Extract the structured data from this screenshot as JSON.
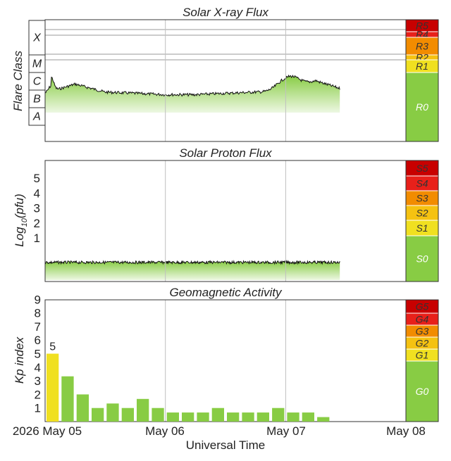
{
  "colors": {
    "green": "#88cc44",
    "yellow": "#f0e020",
    "amber": "#f5c211",
    "orange": "#f28c00",
    "red": "#e8201a",
    "darkred": "#c80000",
    "grid": "#c0c0c0",
    "frame": "#333333"
  },
  "xray": {
    "title": "Solar X-ray Flux",
    "ylabel": "Flare Class",
    "classes": [
      "X",
      "M",
      "C",
      "B",
      "A"
    ],
    "scale": [
      {
        "label": "R5",
        "color": "#c80000"
      },
      {
        "label": "R4",
        "color": "#e8201a"
      },
      {
        "label": "R3",
        "color": "#f28c00"
      },
      {
        "label": "R2",
        "color": "#f5c211"
      },
      {
        "label": "R1",
        "color": "#f0e020"
      },
      {
        "label": "R0",
        "color": "#88cc44"
      }
    ]
  },
  "proton": {
    "title": "Solar Proton Flux",
    "ylabel_main": "Log",
    "ylabel_sub": "10",
    "ylabel_unit": "(pfu)",
    "ticks": [
      "5",
      "4",
      "3",
      "2",
      "1"
    ],
    "scale": [
      {
        "label": "S5",
        "color": "#c80000"
      },
      {
        "label": "S4",
        "color": "#e8201a"
      },
      {
        "label": "S3",
        "color": "#f28c00"
      },
      {
        "label": "S2",
        "color": "#f5c211"
      },
      {
        "label": "S1",
        "color": "#f0e020"
      },
      {
        "label": "S0",
        "color": "#88cc44"
      }
    ]
  },
  "geomag": {
    "title": "Geomagnetic Activity",
    "ylabel": "Kp index",
    "ticks": [
      "9",
      "8",
      "7",
      "6",
      "5",
      "4",
      "3",
      "2",
      "1"
    ],
    "scale": [
      {
        "label": "G5",
        "color": "#c80000"
      },
      {
        "label": "G4",
        "color": "#e8201a"
      },
      {
        "label": "G3",
        "color": "#f28c00"
      },
      {
        "label": "G2",
        "color": "#f5c211"
      },
      {
        "label": "G1",
        "color": "#f0e020"
      },
      {
        "label": "G0",
        "color": "#88cc44"
      }
    ],
    "first_bar_label": "5"
  },
  "xaxis": {
    "label": "Universal Time",
    "ticks": [
      "2026 May 05",
      "May 06",
      "May 07",
      "May 08"
    ]
  },
  "chart_data": [
    {
      "type": "area",
      "title": "Solar X-ray Flux",
      "ylabel": "Flare Class",
      "y_scale": "log",
      "series": [
        {
          "x": [
            "2026-05-05 00:00",
            "2026-05-05 06:00",
            "2026-05-05 12:00",
            "2026-05-05 18:00",
            "2026-05-06 00:00",
            "2026-05-06 06:00",
            "2026-05-06 12:00",
            "2026-05-06 18:00",
            "2026-05-07 00:00",
            "2026-05-07 06:00",
            "2026-05-07 12:00"
          ],
          "class_level": [
            "B6",
            "C2",
            "B7",
            "B6",
            "B5",
            "B5",
            "B6",
            "B7",
            "B6",
            "C3",
            "B9"
          ]
        }
      ]
    },
    {
      "type": "area",
      "title": "Solar Proton Flux",
      "ylabel": "Log10(pfu)",
      "ylim": [
        -1,
        6
      ],
      "series": [
        {
          "x": [
            "2026-05-05 00:00",
            "2026-05-05 12:00",
            "2026-05-06 00:00",
            "2026-05-06 12:00",
            "2026-05-07 00:00",
            "2026-05-07 12:00"
          ],
          "values": [
            -0.5,
            -0.5,
            -0.5,
            -0.5,
            -0.5,
            -0.5
          ]
        }
      ]
    },
    {
      "type": "bar",
      "title": "Geomagnetic Activity",
      "ylabel": "Kp index",
      "ylim": [
        0,
        10
      ],
      "categories": [
        "May 05 00",
        "May 05 03",
        "May 05 06",
        "May 05 09",
        "May 05 12",
        "May 05 15",
        "May 05 18",
        "May 05 21",
        "May 06 00",
        "May 06 03",
        "May 06 06",
        "May 06 09",
        "May 06 12",
        "May 06 15",
        "May 06 18",
        "May 06 21",
        "May 07 00",
        "May 07 03",
        "May 07 06"
      ],
      "values": [
        5,
        3.33,
        2,
        1,
        1.33,
        1,
        1.67,
        1,
        0.67,
        0.67,
        0.67,
        1,
        0.67,
        0.67,
        0.67,
        1,
        0.67,
        0.67,
        0.33
      ]
    }
  ]
}
